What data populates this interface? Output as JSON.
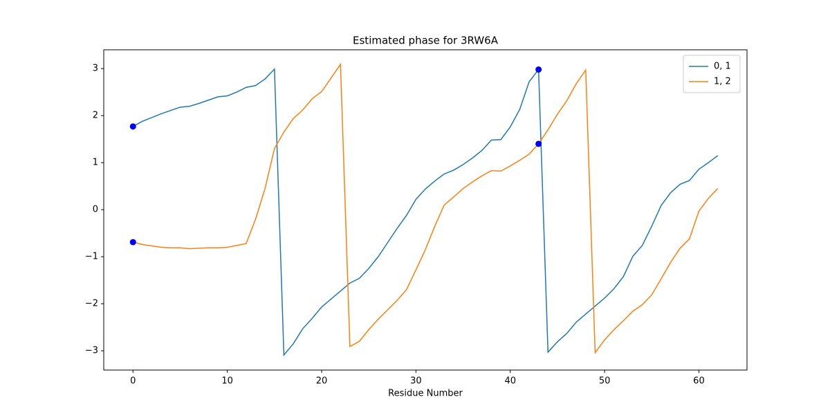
{
  "chart_data": {
    "type": "line",
    "title": "Estimated phase for 3RW6A",
    "x_label": "Residue Number",
    "x": [
      0,
      1,
      2,
      3,
      4,
      5,
      6,
      7,
      8,
      9,
      10,
      11,
      12,
      13,
      14,
      15,
      16,
      17,
      18,
      19,
      20,
      21,
      22,
      23,
      24,
      25,
      26,
      27,
      28,
      29,
      30,
      31,
      32,
      33,
      34,
      35,
      36,
      37,
      38,
      39,
      40,
      41,
      42,
      43,
      44,
      45,
      46,
      47,
      48,
      49,
      50,
      51,
      52,
      53,
      54,
      55,
      56,
      57,
      58,
      59,
      60,
      61,
      62
    ],
    "series": [
      {
        "name": "0, 1",
        "color": "#1f77b4",
        "values": [
          1.77,
          1.88,
          1.96,
          2.04,
          2.11,
          2.18,
          2.2,
          2.26,
          2.33,
          2.4,
          2.42,
          2.5,
          2.6,
          2.64,
          2.78,
          2.99,
          -3.09,
          -2.85,
          -2.53,
          -2.31,
          -2.07,
          -1.9,
          -1.73,
          -1.56,
          -1.46,
          -1.25,
          -1.0,
          -0.7,
          -0.4,
          -0.12,
          0.22,
          0.44,
          0.61,
          0.76,
          0.84,
          0.96,
          1.1,
          1.26,
          1.48,
          1.49,
          1.76,
          2.13,
          2.72,
          2.98,
          -3.03,
          -2.81,
          -2.63,
          -2.39,
          -2.22,
          -2.05,
          -1.88,
          -1.68,
          -1.42,
          -0.99,
          -0.76,
          -0.35,
          0.09,
          0.36,
          0.54,
          0.62,
          0.86,
          1.0,
          1.15
        ]
      },
      {
        "name": "1, 2",
        "color": "#ff7f0e",
        "values": [
          -0.69,
          -0.74,
          -0.77,
          -0.8,
          -0.81,
          -0.81,
          -0.83,
          -0.82,
          -0.81,
          -0.81,
          -0.8,
          -0.76,
          -0.72,
          -0.2,
          0.45,
          1.3,
          1.65,
          1.94,
          2.12,
          2.36,
          2.51,
          2.8,
          3.09,
          -2.91,
          -2.8,
          -2.55,
          -2.33,
          -2.13,
          -1.93,
          -1.7,
          -1.28,
          -0.85,
          -0.35,
          0.1,
          0.27,
          0.45,
          0.59,
          0.72,
          0.83,
          0.82,
          0.93,
          1.05,
          1.18,
          1.4,
          1.7,
          2.03,
          2.32,
          2.68,
          2.97,
          -3.04,
          -2.77,
          -2.55,
          -2.36,
          -2.16,
          -2.02,
          -1.81,
          -1.47,
          -1.12,
          -0.82,
          -0.62,
          -0.03,
          0.24,
          0.45
        ]
      }
    ],
    "points": {
      "color": "#0000ff",
      "x": [
        0,
        0,
        43,
        43
      ],
      "values": [
        1.77,
        -0.69,
        2.98,
        1.4
      ]
    },
    "xlim": [
      -3.1,
      65.1
    ],
    "ylim": [
      -3.41,
      3.4
    ],
    "xticks": [
      0,
      10,
      20,
      30,
      40,
      50,
      60
    ],
    "yticks": [
      {
        "value": -3,
        "label": "−3"
      },
      {
        "value": -2,
        "label": "−2"
      },
      {
        "value": -1,
        "label": "−1"
      },
      0,
      1,
      2,
      3
    ],
    "legend": "upper right"
  }
}
